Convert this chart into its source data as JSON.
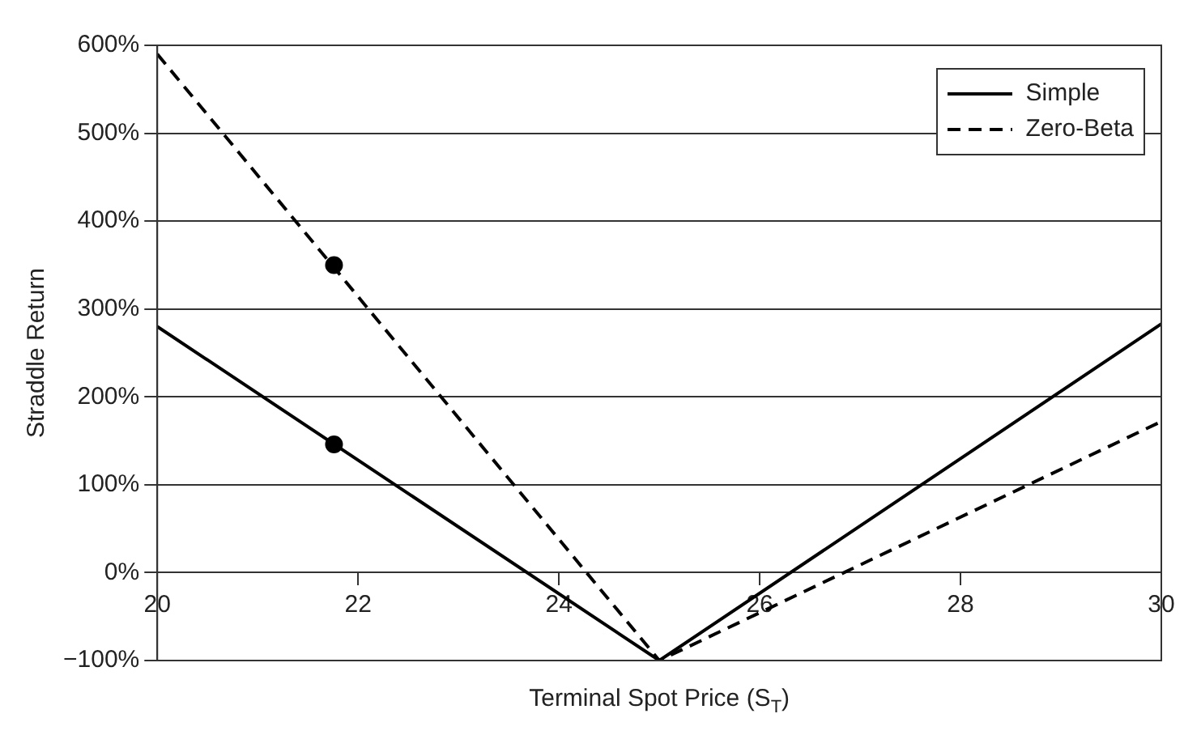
{
  "chart_data": {
    "type": "line",
    "xlabel": "Terminal Spot Price (S$_{T}$)",
    "ylabel": "Straddle Return",
    "xlim": [
      20,
      30
    ],
    "xticks": [
      20,
      22,
      24,
      26,
      28,
      30
    ],
    "ylim": [
      -100,
      600
    ],
    "yticks": [
      {
        "value": -100,
        "label": "−100%"
      },
      {
        "value": 0,
        "label": "0%"
      },
      {
        "value": 100,
        "label": "100%"
      },
      {
        "value": 200,
        "label": "200%"
      },
      {
        "value": 300,
        "label": "300%"
      },
      {
        "value": 400,
        "label": "400%"
      },
      {
        "value": 500,
        "label": "500%"
      },
      {
        "value": 600,
        "label": "600%"
      }
    ],
    "grid": "y",
    "legend": "top right",
    "series": [
      {
        "name": "Simple",
        "color": "#000000",
        "line_style": "solid",
        "x": [
          20,
          25,
          30
        ],
        "values": [
          280,
          -100,
          283
        ]
      },
      {
        "name": "Zero-Beta",
        "color": "#000000",
        "line_style": "dashed",
        "x": [
          20,
          25,
          30
        ],
        "values": [
          590,
          -100,
          172
        ]
      },
      {
        "type": "scatter",
        "color": "#000000",
        "marker": "circle",
        "x": [
          21.76,
          21.76
        ],
        "values": [
          146,
          350
        ]
      }
    ]
  }
}
